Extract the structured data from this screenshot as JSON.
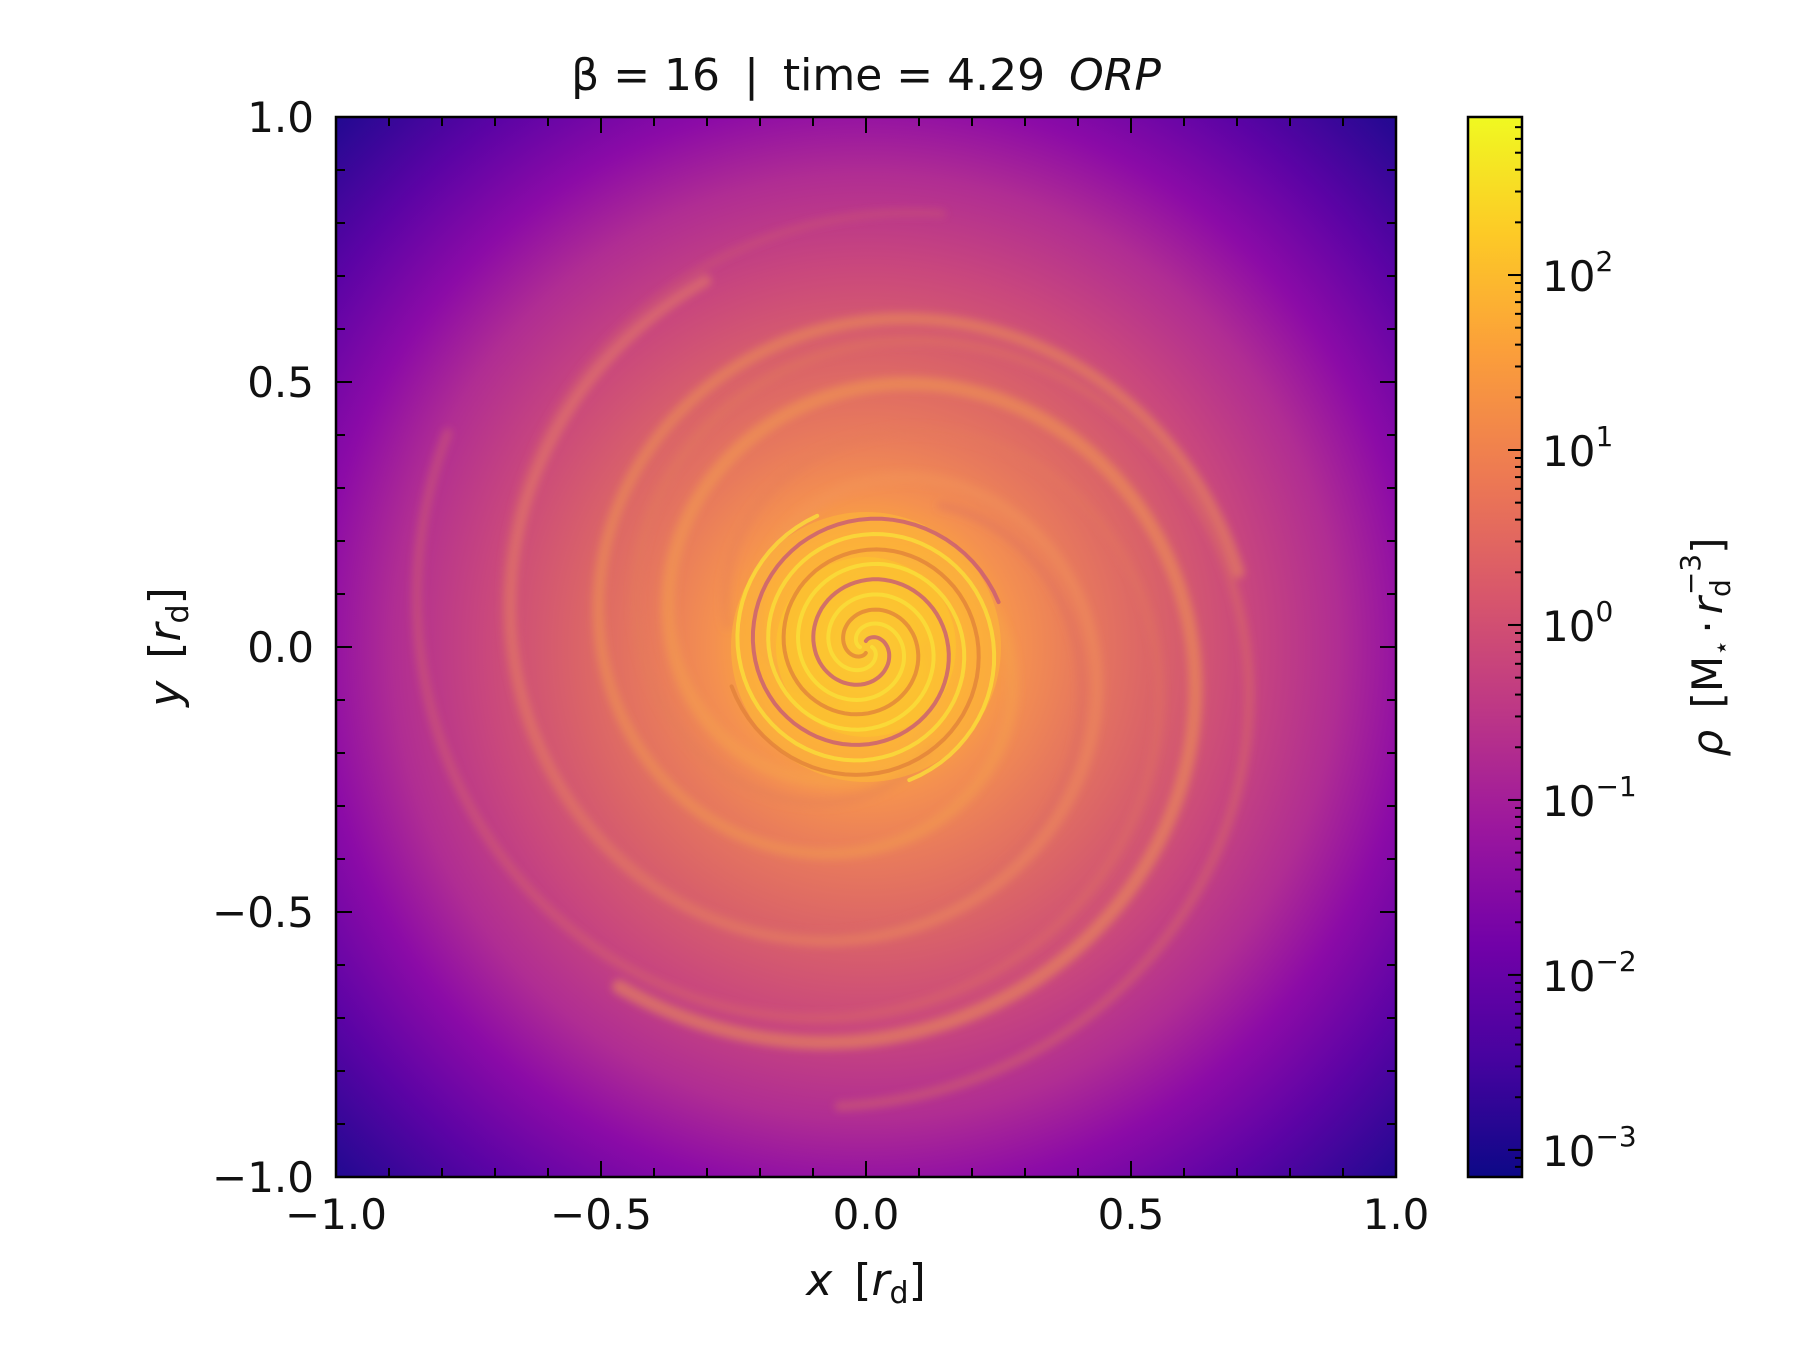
{
  "chart_data": {
    "type": "heatmap",
    "title": {
      "beta_label": "β = 16",
      "separator": "|",
      "time_label": "time = 4.29",
      "unit": "ORP"
    },
    "xlabel": {
      "var": "x",
      "unit_open": "[",
      "unit_var": "r",
      "unit_sub": "d",
      "unit_close": "]"
    },
    "ylabel": {
      "var": "y",
      "unit_open": "[",
      "unit_var": "r",
      "unit_sub": "d",
      "unit_close": "]"
    },
    "xlim": [
      -1.0,
      1.0
    ],
    "ylim": [
      -1.0,
      1.0
    ],
    "x_ticks": [
      {
        "value": -1.0,
        "label": "−1.0"
      },
      {
        "value": -0.5,
        "label": "−0.5"
      },
      {
        "value": 0.0,
        "label": "0.0"
      },
      {
        "value": 0.5,
        "label": "0.5"
      },
      {
        "value": 1.0,
        "label": "1.0"
      }
    ],
    "y_ticks": [
      {
        "value": -1.0,
        "label": "−1.0"
      },
      {
        "value": -0.5,
        "label": "−0.5"
      },
      {
        "value": 0.0,
        "label": "0.0"
      },
      {
        "value": 0.5,
        "label": "0.5"
      },
      {
        "value": 1.0,
        "label": "1.0"
      }
    ],
    "colorbar": {
      "label": "ρ [M⋆ · r_d^-3]",
      "label_parts": {
        "rho": "ρ",
        "open": "[",
        "mass": "M",
        "star": "⋆",
        "dot": "·",
        "r": "r",
        "sub": "d",
        "exp": "−3",
        "close": "]"
      },
      "scale": "log",
      "range": [
        0.0007,
        800
      ],
      "colormap": "plasma",
      "ticks": [
        {
          "value": 0.001,
          "base": "10",
          "exp": "−3"
        },
        {
          "value": 0.01,
          "base": "10",
          "exp": "−2"
        },
        {
          "value": 0.1,
          "base": "10",
          "exp": "−1"
        },
        {
          "value": 1,
          "base": "10",
          "exp": "0"
        },
        {
          "value": 10,
          "base": "10",
          "exp": "1"
        },
        {
          "value": 100,
          "base": "10",
          "exp": "2"
        }
      ],
      "colors": [
        "#0d0887",
        "#46039f",
        "#7201a8",
        "#9c179e",
        "#bd3786",
        "#d8576b",
        "#ed7953",
        "#fb9f3a",
        "#fdca26",
        "#f0f921"
      ]
    },
    "grid": false,
    "density_profile": {
      "description_values_r": [
        0.0,
        0.05,
        0.15,
        0.25,
        0.35,
        0.5,
        0.7,
        0.9,
        1.0,
        1.41
      ],
      "log10_rho": [
        2.6,
        2.4,
        2.1,
        1.6,
        1.0,
        0.4,
        -0.2,
        -1.2,
        -1.9,
        -2.7
      ]
    }
  }
}
